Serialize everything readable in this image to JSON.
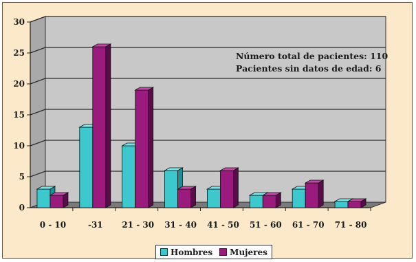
{
  "chart_data": {
    "type": "bar",
    "categories": [
      "0 - 10",
      "-31",
      "21 - 30",
      "31 - 40",
      "41 - 50",
      "51 - 60",
      "61 - 70",
      "71 - 80"
    ],
    "series": [
      {
        "name": "Hombres",
        "values": [
          3,
          13,
          10,
          6,
          3,
          2,
          3,
          1
        ],
        "color": "#3cc8cc",
        "side_color": "#1e8f94",
        "top_color": "#7de3e6"
      },
      {
        "name": "Mujeres",
        "values": [
          2,
          26,
          19,
          3,
          6,
          2,
          4,
          1
        ],
        "color": "#9a1a7e",
        "side_color": "#5a0c4a",
        "top_color": "#c24aa6"
      }
    ],
    "yticks": [
      0,
      5,
      10,
      15,
      20,
      25,
      30
    ],
    "ylim": [
      0,
      30
    ],
    "grid": true,
    "legend_position": "bottom",
    "annotations": [
      "Número total de pacientes: 110",
      "Pacientes sin datos de edad: 6"
    ]
  }
}
